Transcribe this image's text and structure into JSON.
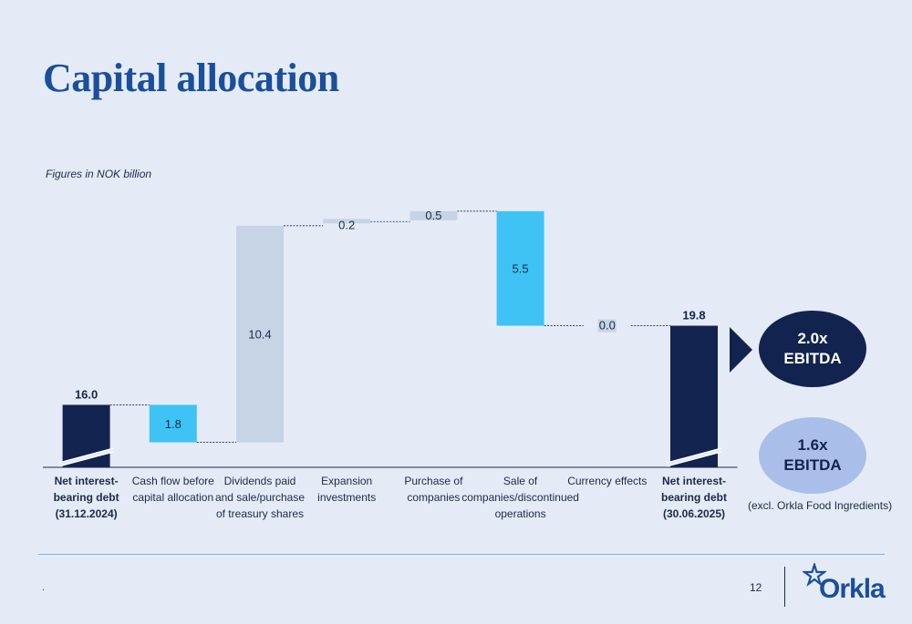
{
  "title": "Capital allocation",
  "subtitle": "Figures in NOK billion",
  "chart_data": {
    "type": "bar",
    "variant": "waterfall",
    "title": "",
    "xlabel": "",
    "ylabel": "",
    "categories": [
      [
        "Net interest-",
        "bearing debt",
        "(31.12.2024)"
      ],
      [
        "Cash flow before",
        "capital allocation"
      ],
      [
        "Dividends paid",
        "and sale/purchase",
        "of treasury shares"
      ],
      [
        "Expansion",
        "investments"
      ],
      [
        "Purchase of",
        "companies"
      ],
      [
        "Sale of",
        "companies/discontinued",
        "operations"
      ],
      [
        "Currency effects"
      ],
      [
        "Net interest-",
        "bearing debt",
        "(30.06.2025)"
      ]
    ],
    "bars": [
      {
        "kind": "total",
        "value": 16.0,
        "label": "16.0"
      },
      {
        "kind": "decrease",
        "value": 1.8,
        "label": "1.8"
      },
      {
        "kind": "increase",
        "value": 10.4,
        "label": "10.4"
      },
      {
        "kind": "increase",
        "value": 0.2,
        "label": "0.2"
      },
      {
        "kind": "increase",
        "value": 0.5,
        "label": "0.5"
      },
      {
        "kind": "decrease",
        "value": 5.5,
        "label": "5.5"
      },
      {
        "kind": "increase",
        "value": 0.0,
        "label": "0.0"
      },
      {
        "kind": "total",
        "value": 19.8,
        "label": "19.8"
      }
    ],
    "axis_break": true,
    "colors": {
      "total": "#13234f",
      "decrease": "#3ec3f4",
      "increase": "#c6d4e6",
      "axis": "#1b2a48"
    }
  },
  "callouts": {
    "pill1_line1": "2.0x",
    "pill1_line2": "EBITDA",
    "pill2_line1": "1.6x",
    "pill2_line2": "EBITDA",
    "note": "(excl. Orkla Food Ingredients)"
  },
  "footer": {
    "dot": ".",
    "page_number": "12",
    "logo_text": "Orkla"
  }
}
